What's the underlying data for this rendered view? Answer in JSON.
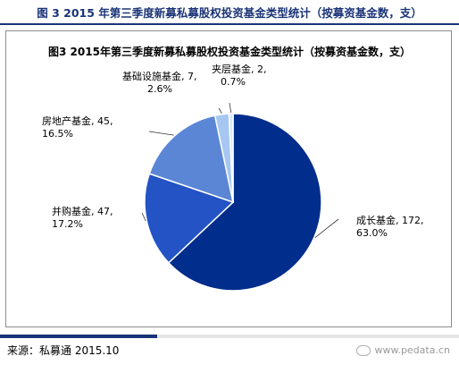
{
  "header": {
    "title": "图 3 2015 年第三季度新募私募股权投资基金类型统计（按募资基金数，支）"
  },
  "chart_data": {
    "type": "pie",
    "title": "图3 2015年第三季度新募私募股权投资基金类型统计（按募资基金数，支）",
    "slices": [
      {
        "label": "成长基金",
        "value": 172,
        "percent": "63.0%",
        "color": "#012d8c"
      },
      {
        "label": "并购基金",
        "value": 47,
        "percent": "17.2%",
        "color": "#2353c4"
      },
      {
        "label": "房地产基金",
        "value": 45,
        "percent": "16.5%",
        "color": "#5b86d6"
      },
      {
        "label": "基础设施基金",
        "value": 7,
        "percent": "2.6%",
        "color": "#a6c7f2"
      },
      {
        "label": "夹层基金",
        "value": 2,
        "percent": "0.7%",
        "color": "#d6e8fa"
      }
    ],
    "legend": "none"
  },
  "footer": {
    "source": "来源：私募通 2015.10",
    "watermark": "www.pedata.cn"
  }
}
